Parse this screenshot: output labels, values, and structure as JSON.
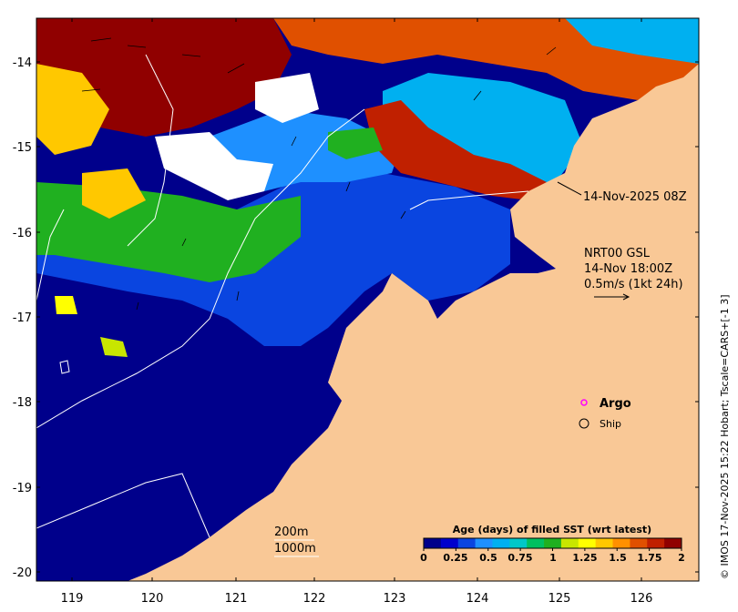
{
  "map": {
    "y_ticks": [
      "-14",
      "-15",
      "-16",
      "-17",
      "-18",
      "-19",
      "-20"
    ],
    "x_ticks": [
      "119",
      "120",
      "121",
      "122",
      "123",
      "124",
      "125",
      "126"
    ],
    "date_label": "14-Nov-2025 08Z",
    "current_label": {
      "line1": "NRT00 GSL",
      "line2": "14-Nov 18:00Z",
      "line3": "0.5m/s (1kt 24h)"
    },
    "argo_label": "Argo",
    "ship_label": "Ship",
    "depth_labels": [
      "200m",
      "1000m"
    ],
    "credit": "© IMOS 17-Nov-2025 15:22 Hobart; Tscale=CARS+[-1 3]",
    "colors": {
      "land": "#f9c896",
      "argo": "#ff00ff",
      "contour": "#ffffff"
    }
  },
  "colorbar": {
    "title": "Age (days) of filled SST (wrt latest)",
    "labels": [
      "0",
      "0.25",
      "0.5",
      "0.75",
      "1",
      "1.25",
      "1.5",
      "1.75",
      "2"
    ],
    "colors": [
      "#00008b",
      "#0000cd",
      "#0a45e0",
      "#1e90ff",
      "#00b0f0",
      "#00c8c8",
      "#00c060",
      "#20b020",
      "#c8e600",
      "#ffff00",
      "#ffc800",
      "#ff9000",
      "#e05000",
      "#c02000",
      "#900000"
    ]
  }
}
